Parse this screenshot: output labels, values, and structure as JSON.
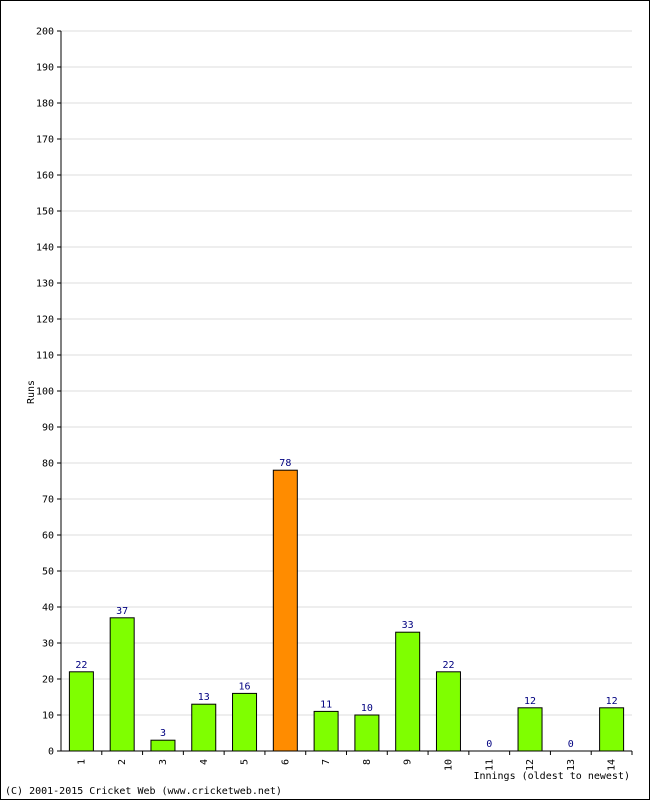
{
  "chart_data": {
    "type": "bar",
    "categories": [
      "1",
      "2",
      "3",
      "4",
      "5",
      "6",
      "7",
      "8",
      "9",
      "10",
      "11",
      "12",
      "13",
      "14"
    ],
    "values": [
      22,
      37,
      3,
      13,
      16,
      78,
      11,
      10,
      33,
      22,
      0,
      12,
      0,
      12
    ],
    "highlight_index": 5,
    "colors": {
      "bar": "#7FFF00",
      "highlight": "#FF8C00",
      "grid": "#dddddd",
      "label": "#000080"
    },
    "xlabel": "Innings (oldest to newest)",
    "ylabel": "Runs",
    "ylim": [
      0,
      200
    ],
    "ytick_step": 10,
    "grid": true
  },
  "footer": {
    "copyright": "(C) 2001-2015 Cricket Web (www.cricketweb.net)"
  }
}
